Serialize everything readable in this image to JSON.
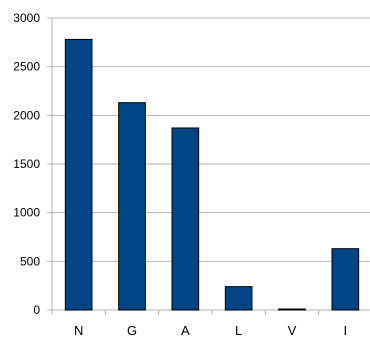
{
  "chart_data": {
    "type": "bar",
    "categories": [
      "N",
      "G",
      "A",
      "L",
      "V",
      "I"
    ],
    "values": [
      2780,
      2130,
      1870,
      240,
      10,
      630
    ],
    "title": "",
    "xlabel": "",
    "ylabel": "",
    "ylim": [
      0,
      3000
    ],
    "yticks": [
      0,
      500,
      1000,
      1500,
      2000,
      2500,
      3000
    ],
    "grid": "horizontal",
    "legend": "none",
    "colors": {
      "bar_fill": "#004586",
      "bar_stroke": "#000000",
      "grid": "#b3b3b3",
      "axis": "#b3b3b3"
    }
  }
}
